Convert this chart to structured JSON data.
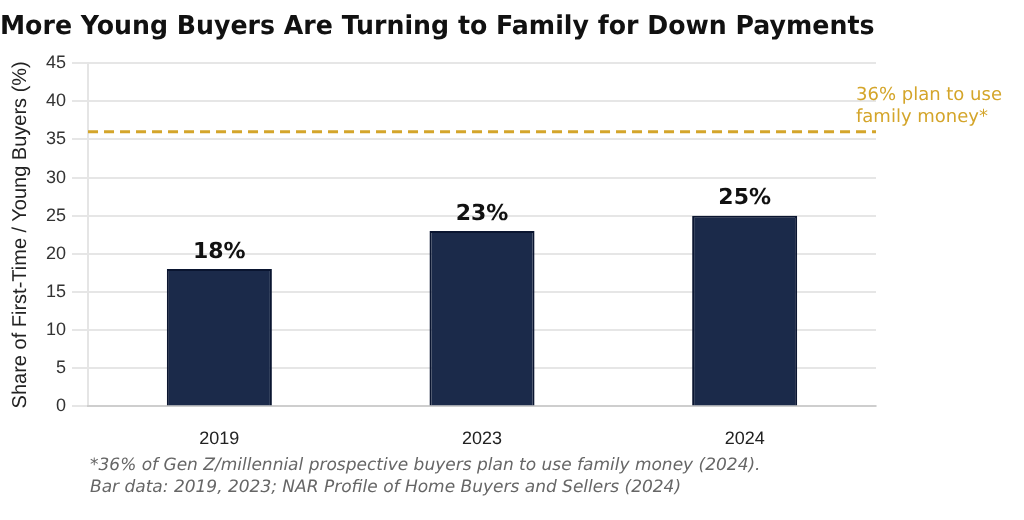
{
  "chart_data": {
    "type": "bar",
    "title": "More Young Buyers Are Turning to Family for Down Payments",
    "ylabel": "Share of First-Time / Young Buyers (%)",
    "categories": [
      "2019",
      "2023",
      "2024"
    ],
    "values": [
      18,
      23,
      25
    ],
    "color": "#1b2a4a",
    "value_labels": [
      "18%",
      "23%",
      "25%"
    ],
    "ylim": [
      0,
      45
    ],
    "yticks": [
      0,
      5,
      10,
      15,
      20,
      25,
      30,
      35,
      40,
      45
    ],
    "grid": "y",
    "ref_lines": [
      {
        "axis": "y",
        "value": 36,
        "label": "36% plan to use family money*",
        "color": "#d4a52a",
        "line_style": "dashed"
      }
    ],
    "annotations": [
      "*36% of Gen Z/millennial prospective buyers plan to use family money (2024).",
      "Bar data: 2019, 2023; NAR Profile of Home Buyers and Sellers (2024)"
    ]
  }
}
